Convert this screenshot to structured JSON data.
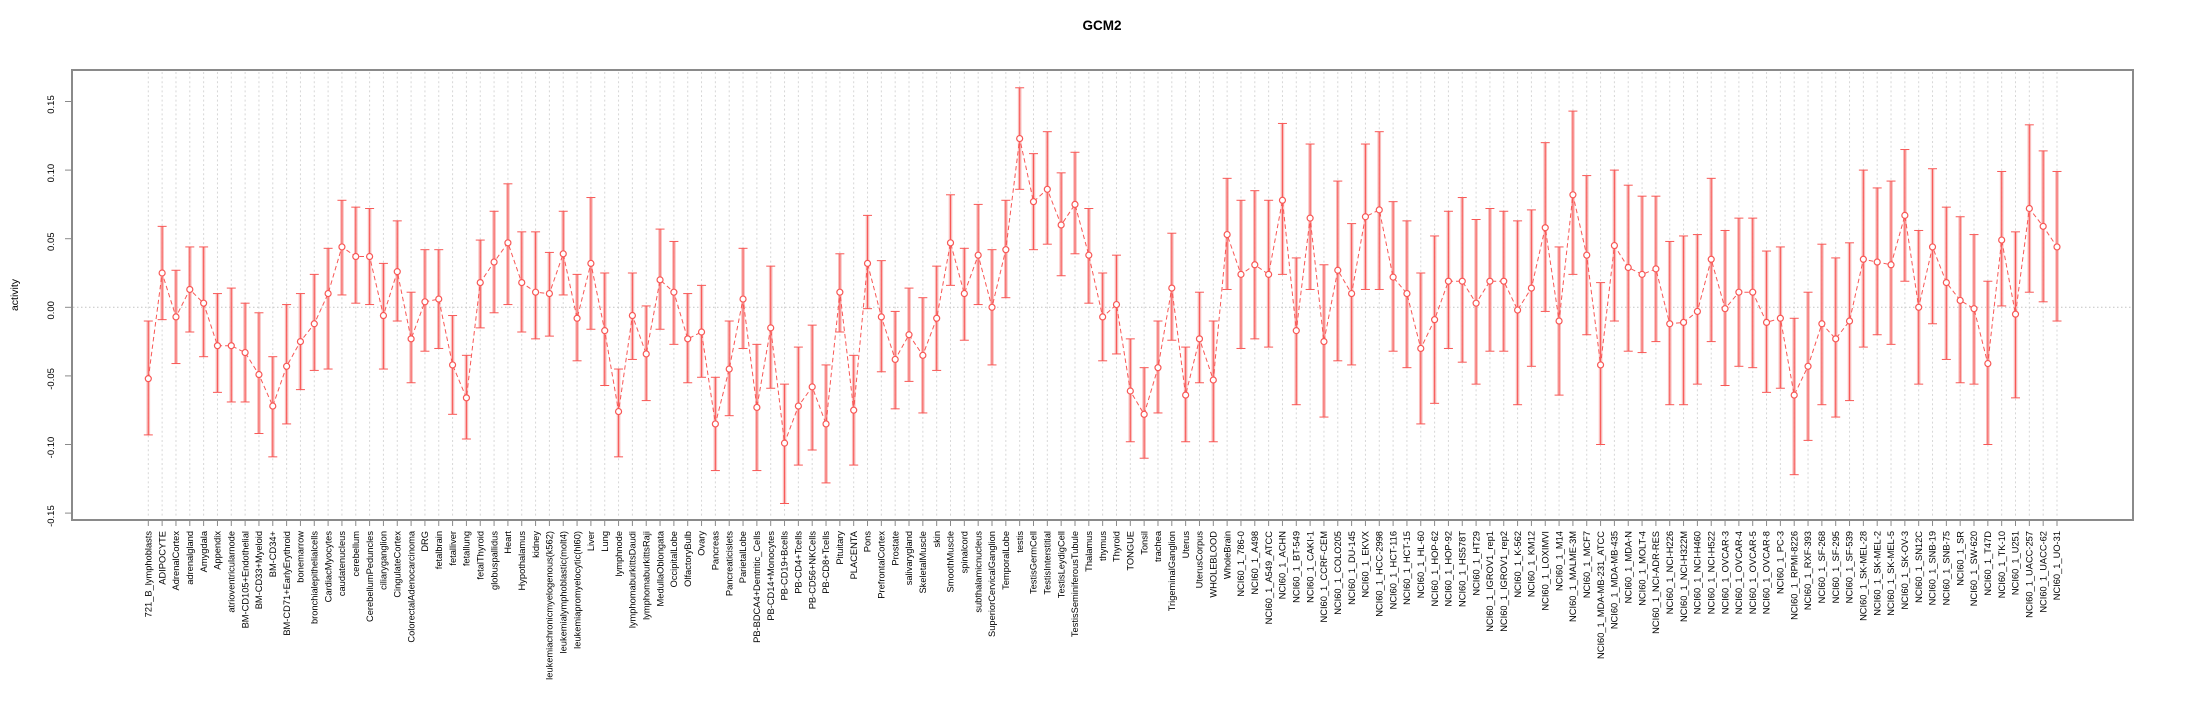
{
  "chart_data": {
    "type": "scatter",
    "title": "GCM2",
    "xlabel": "",
    "ylabel": "activity",
    "ylim": [
      -0.155,
      0.173
    ],
    "y_ticks": [
      -0.15,
      -0.1,
      -0.05,
      0.0,
      0.05,
      0.1,
      0.15
    ],
    "grid": true,
    "zero_line_at": 0.0,
    "legend": "none",
    "colors": {
      "point": "#f85856",
      "errorbar_band": "#f7a9a7",
      "grid": "#d7d7d7",
      "box": "#8a8a8a",
      "zero_line": "#c4c4c4",
      "background": "#ffffff"
    },
    "categories": [
      "721_B_lymphoblasts",
      "ADIPOCYTE",
      "AdrenalCortex",
      "adrenalgland",
      "Amygdala",
      "Appendix",
      "atrioventricularnode",
      "BM-CD105+Endothelial",
      "BM-CD33+Myeloid",
      "BM-CD34+",
      "BM-CD71+EarlyErythroid",
      "bonemarrow",
      "bronchialepithelialcells",
      "CardiacMyocytes",
      "caudatenucleus",
      "cerebellum",
      "CerebellumPeduncles",
      "ciliaryganglion",
      "CingulateCortex",
      "ColorectalAdenocarcinoma",
      "DRG",
      "fetalbrain",
      "fetalliver",
      "fetallung",
      "fetalThyroid",
      "globuspallidus",
      "Heart",
      "Hypothalamus",
      "kidney",
      "leukemiachronicmyelogenous(k562)",
      "leukemialymphoblastic(molt4)",
      "leukemiapromyelocytic(hl60)",
      "Liver",
      "Lung",
      "lymphnode",
      "lymphomaburkittsDaudi",
      "lymphomaburkittsRaji",
      "MedullaOblongata",
      "OccipitalLobe",
      "OlfactoryBulb",
      "Ovary",
      "Pancreas",
      "Pancreaticislets",
      "ParietalLobe",
      "PB-BDCA4+Dentritic_Cells",
      "PB-CD14+Monocytes",
      "PB-CD19+Bcells",
      "PB-CD4+Tcells",
      "PB-CD56+NKCells",
      "PB-CD8+Tcells",
      "Pituitary",
      "PLACENTA",
      "Pons",
      "PrefrontalCortex",
      "Prostate",
      "salivarygland",
      "SkeletalMuscle",
      "skin",
      "SmoothMuscle",
      "spinalcord",
      "subthalamicnucleus",
      "SuperiorCervicalGanglion",
      "TemporalLobe",
      "testis",
      "TestisGermCell",
      "TestisInterstitial",
      "TestisLeydigCell",
      "TestisSeminiferousTubule",
      "Thalamus",
      "thymus",
      "Thyroid",
      "TONGUE",
      "Tonsil",
      "trachea",
      "TrigeminalGanglion",
      "Uterus",
      "UterusCorpus",
      "WHOLEBLOOD",
      "WholeBrain",
      "NCI60_1_786-0",
      "NCI60_1_A498",
      "NCI60_1_A549_ATCC",
      "NCI60_1_ACHN",
      "NCI60_1_BT-549",
      "NCI60_1_CAKI-1",
      "NCI60_1_CCRF-CEM",
      "NCI60_1_COLO205",
      "NCI60_1_DU-145",
      "NCI60_1_EKVX",
      "NCI60_1_HCC-2998",
      "NCI60_1_HCT-116",
      "NCI60_1_HCT-15",
      "NCI60_1_HL-60",
      "NCI60_1_HOP-62",
      "NCI60_1_HOP-92",
      "NCI60_1_HS578T",
      "NCI60_1_HT29",
      "NCI60_1_IGROV1_rep1",
      "NCI60_1_IGROV1_rep2",
      "NCI60_1_K-562",
      "NCI60_1_KM12",
      "NCI60_1_LOXIMVI",
      "NCI60_1_M14",
      "NCI60_1_MALME-3M",
      "NCI60_1_MCF7",
      "NCI60_1_MDA-MB-231_ATCC",
      "NCI60_1_MDA-MB-435",
      "NCI60_1_MDA-N",
      "NCI60_1_MOLT-4",
      "NCI60_1_NCI-ADR-RES",
      "NCI60_1_NCI-H226",
      "NCI60_1_NCI-H322M",
      "NCI60_1_NCI-H460",
      "NCI60_1_NCI-H522",
      "NCI60_1_OVCAR-3",
      "NCI60_1_OVCAR-4",
      "NCI60_1_OVCAR-5",
      "NCI60_1_OVCAR-8",
      "NCI60_1_PC-3",
      "NCI60_1_RPMI-8226",
      "NCI60_1_RXF-393",
      "NCI60_1_SF-268",
      "NCI60_1_SF-295",
      "NCI60_1_SF-539",
      "NCI60_1_SK-MEL-28",
      "NCI60_1_SK-MEL-2",
      "NCI60_1_SK-MEL-5",
      "NCI60_1_SK-OV-3",
      "NCI60_1_SN12C",
      "NCI60_1_SNB-19",
      "NCI60_1_SNB-75",
      "NCI60_1_SR",
      "NCI60_1_SW-620",
      "NCI60_1_T47D",
      "NCI60_1_TK-10",
      "NCI60_1_U251",
      "NCI60_1_UACC-257",
      "NCI60_1_UACC-62",
      "NCI60_1_UO-31"
    ],
    "series": [
      {
        "name": "activity",
        "values": [
          -0.052,
          0.025,
          -0.007,
          0.013,
          0.003,
          -0.028,
          -0.028,
          -0.033,
          -0.049,
          -0.072,
          -0.043,
          -0.025,
          -0.012,
          0.01,
          0.044,
          0.037,
          0.037,
          -0.006,
          0.026,
          -0.023,
          0.004,
          0.006,
          -0.042,
          -0.066,
          0.018,
          0.033,
          0.047,
          0.018,
          0.011,
          0.01,
          0.039,
          -0.008,
          0.032,
          -0.017,
          -0.076,
          -0.006,
          -0.034,
          0.02,
          0.011,
          -0.023,
          -0.018,
          -0.085,
          -0.045,
          0.006,
          -0.073,
          -0.015,
          -0.099,
          -0.072,
          -0.058,
          -0.085,
          0.011,
          -0.075,
          0.032,
          -0.007,
          -0.038,
          -0.02,
          -0.035,
          -0.008,
          0.047,
          0.01,
          0.038,
          0.0,
          0.042,
          0.123,
          0.077,
          0.086,
          0.06,
          0.075,
          0.038,
          -0.007,
          0.002,
          -0.061,
          -0.078,
          -0.044,
          0.014,
          -0.064,
          -0.023,
          -0.053,
          0.053,
          0.024,
          0.031,
          0.024,
          0.078,
          -0.017,
          0.065,
          -0.025,
          0.027,
          0.01,
          0.066,
          0.071,
          0.022,
          0.01,
          -0.03,
          -0.009,
          0.019,
          0.019,
          0.003,
          0.019,
          0.019,
          -0.002,
          0.014,
          0.058,
          -0.01,
          0.082,
          0.038,
          -0.042,
          0.045,
          0.029,
          0.024,
          0.028,
          -0.012,
          -0.011,
          -0.003,
          0.035,
          -0.001,
          0.011,
          0.011,
          -0.011,
          -0.008,
          -0.064,
          -0.043,
          -0.012,
          -0.023,
          -0.01,
          0.035,
          0.033,
          0.031,
          0.067,
          0.0,
          0.044,
          0.018,
          0.005,
          -0.001,
          -0.041,
          0.049,
          -0.005,
          0.072,
          0.059,
          0.044
        ],
        "lower": [
          -0.093,
          -0.009,
          -0.041,
          -0.018,
          -0.036,
          -0.062,
          -0.069,
          -0.069,
          -0.092,
          -0.109,
          -0.085,
          -0.06,
          -0.046,
          -0.045,
          0.009,
          0.003,
          0.002,
          -0.045,
          -0.01,
          -0.055,
          -0.032,
          -0.03,
          -0.078,
          -0.096,
          -0.015,
          -0.004,
          0.002,
          -0.018,
          -0.023,
          -0.021,
          0.009,
          -0.039,
          -0.016,
          -0.057,
          -0.109,
          -0.038,
          -0.068,
          -0.016,
          -0.027,
          -0.055,
          -0.051,
          -0.119,
          -0.079,
          -0.03,
          -0.119,
          -0.059,
          -0.143,
          -0.115,
          -0.104,
          -0.128,
          -0.018,
          -0.115,
          -0.001,
          -0.047,
          -0.074,
          -0.054,
          -0.077,
          -0.046,
          0.016,
          -0.024,
          0.002,
          -0.042,
          0.007,
          0.086,
          0.042,
          0.046,
          0.023,
          0.039,
          0.003,
          -0.039,
          -0.034,
          -0.098,
          -0.11,
          -0.077,
          -0.024,
          -0.098,
          -0.055,
          -0.098,
          0.013,
          -0.03,
          -0.023,
          -0.029,
          0.024,
          -0.071,
          0.013,
          -0.08,
          -0.039,
          -0.042,
          0.013,
          0.013,
          -0.032,
          -0.044,
          -0.085,
          -0.07,
          -0.03,
          -0.04,
          -0.056,
          -0.032,
          -0.032,
          -0.071,
          -0.043,
          -0.003,
          -0.064,
          0.024,
          -0.02,
          -0.1,
          -0.01,
          -0.032,
          -0.033,
          -0.025,
          -0.071,
          -0.071,
          -0.056,
          -0.025,
          -0.057,
          -0.043,
          -0.044,
          -0.062,
          -0.059,
          -0.122,
          -0.097,
          -0.071,
          -0.08,
          -0.068,
          -0.029,
          -0.02,
          -0.027,
          0.019,
          -0.056,
          -0.012,
          -0.038,
          -0.055,
          -0.056,
          -0.1,
          0.001,
          -0.066,
          0.011,
          0.004,
          -0.01
        ],
        "upper": [
          -0.01,
          0.059,
          0.027,
          0.044,
          0.044,
          0.01,
          0.014,
          0.003,
          -0.004,
          -0.036,
          0.002,
          0.01,
          0.024,
          0.043,
          0.078,
          0.073,
          0.072,
          0.032,
          0.063,
          0.011,
          0.042,
          0.042,
          -0.006,
          -0.035,
          0.049,
          0.07,
          0.09,
          0.055,
          0.055,
          0.04,
          0.07,
          0.024,
          0.08,
          0.025,
          -0.045,
          0.025,
          0.001,
          0.057,
          0.048,
          0.01,
          0.016,
          -0.051,
          -0.01,
          0.043,
          -0.027,
          0.03,
          -0.056,
          -0.029,
          -0.013,
          -0.042,
          0.039,
          -0.035,
          0.067,
          0.034,
          -0.003,
          0.014,
          0.007,
          0.03,
          0.082,
          0.043,
          0.075,
          0.042,
          0.078,
          0.16,
          0.112,
          0.128,
          0.098,
          0.113,
          0.072,
          0.025,
          0.038,
          -0.023,
          -0.044,
          -0.01,
          0.054,
          -0.029,
          0.011,
          -0.01,
          0.094,
          0.078,
          0.085,
          0.078,
          0.134,
          0.036,
          0.119,
          0.031,
          0.092,
          0.061,
          0.119,
          0.128,
          0.077,
          0.063,
          0.025,
          0.052,
          0.07,
          0.08,
          0.064,
          0.072,
          0.07,
          0.063,
          0.071,
          0.12,
          0.044,
          0.143,
          0.096,
          0.018,
          0.1,
          0.089,
          0.081,
          0.081,
          0.048,
          0.052,
          0.053,
          0.094,
          0.056,
          0.065,
          0.065,
          0.041,
          0.044,
          -0.008,
          0.011,
          0.046,
          0.036,
          0.047,
          0.1,
          0.087,
          0.092,
          0.115,
          0.056,
          0.101,
          0.073,
          0.066,
          0.053,
          0.019,
          0.099,
          0.055,
          0.133,
          0.114,
          0.099
        ]
      }
    ]
  }
}
